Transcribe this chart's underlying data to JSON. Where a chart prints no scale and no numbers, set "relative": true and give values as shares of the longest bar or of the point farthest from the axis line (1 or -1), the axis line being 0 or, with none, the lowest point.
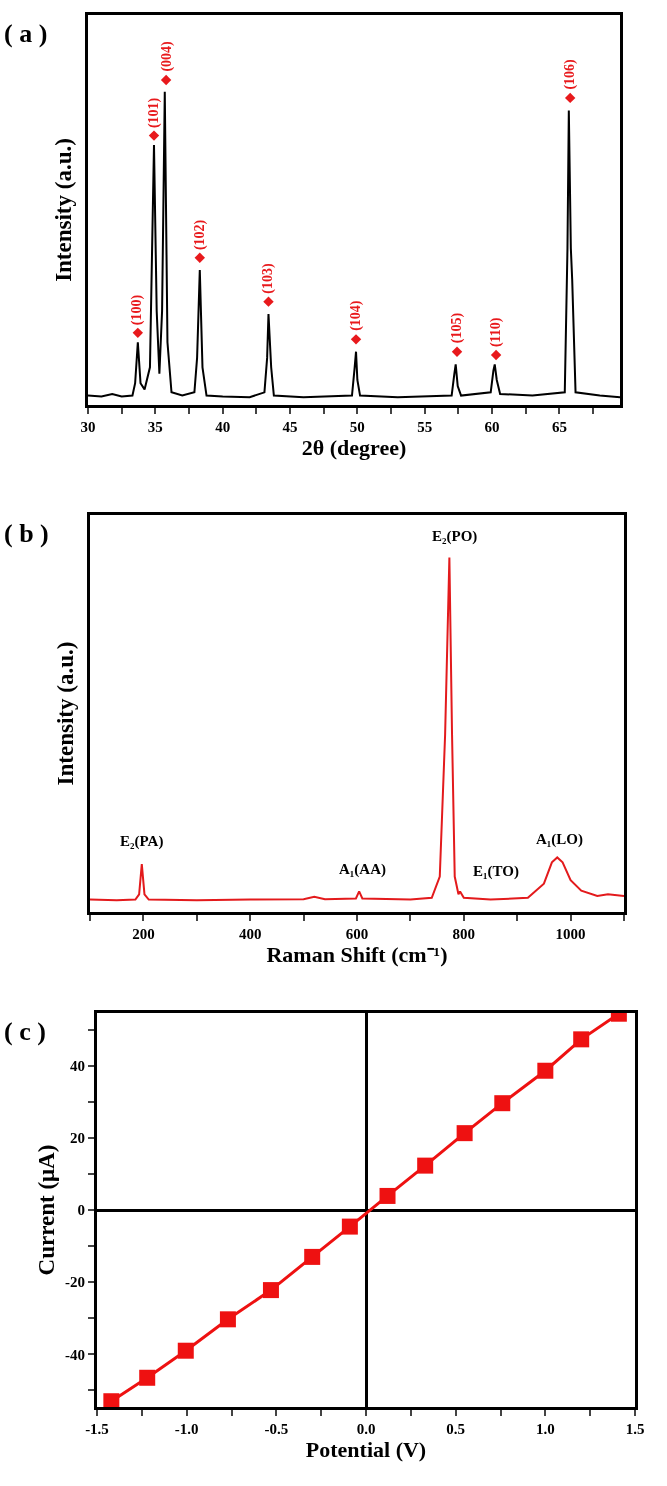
{
  "chart_data": [
    {
      "type": "line",
      "title": "( a )",
      "xlabel": "2θ (degree)",
      "ylabel": "Intensity (a.u.)",
      "relative": true,
      "tick_labels": "x",
      "xlim": [
        30,
        69.5
      ],
      "xticks": [
        30,
        {
          "value": 32.5,
          "label": null
        },
        35,
        {
          "value": 37.5,
          "label": null
        },
        40,
        {
          "value": 42.5,
          "label": null
        },
        45,
        {
          "value": 47.5,
          "label": null
        },
        50,
        {
          "value": 52.5,
          "label": null
        },
        55,
        {
          "value": 57.5,
          "label": null
        },
        60,
        {
          "value": 62.5,
          "label": null
        },
        65,
        {
          "value": 67.5,
          "label": null
        }
      ],
      "series": [
        {
          "type": "line",
          "color": "#000000",
          "x": [
            30,
            31,
            31.8,
            32.5,
            33.3,
            33.5,
            33.7,
            33.9,
            34.2,
            34.6,
            34.9,
            35.1,
            35.3,
            35.5,
            35.7,
            35.9,
            36.2,
            37,
            37.9,
            38.1,
            38.3,
            38.5,
            38.8,
            40,
            42,
            43.1,
            43.3,
            43.4,
            43.6,
            43.8,
            46,
            49.6,
            49.8,
            49.9,
            50.0,
            50.2,
            53,
            57.0,
            57.2,
            57.3,
            57.45,
            57.7,
            59.9,
            60.1,
            60.2,
            60.35,
            60.6,
            63,
            65.4,
            65.6,
            65.7,
            65.85,
            65.95,
            66.2,
            68,
            69.5
          ],
          "values": [
            0.029,
            0.026,
            0.034,
            0.026,
            0.029,
            0.067,
            0.193,
            0.067,
            0.048,
            0.116,
            0.8,
            0.289,
            0.096,
            0.289,
            0.964,
            0.193,
            0.039,
            0.029,
            0.039,
            0.145,
            0.415,
            0.116,
            0.029,
            0.026,
            0.024,
            0.039,
            0.145,
            0.28,
            0.116,
            0.029,
            0.024,
            0.029,
            0.116,
            0.164,
            0.077,
            0.029,
            0.024,
            0.029,
            0.096,
            0.125,
            0.058,
            0.029,
            0.039,
            0.106,
            0.125,
            0.077,
            0.034,
            0.029,
            0.039,
            0.482,
            0.906,
            0.482,
            0.386,
            0.039,
            0.029,
            0.024
          ]
        },
        {
          "type": "scatter",
          "marker": "diamond",
          "color": "#e8191c",
          "x": [
            33.7,
            34.9,
            35.8,
            38.3,
            43.4,
            49.9,
            57.4,
            60.3,
            65.8
          ],
          "values": [
            0.222,
            0.829,
            1.0,
            0.453,
            0.318,
            0.202,
            0.164,
            0.154,
            0.945
          ]
        }
      ],
      "annotations": [
        {
          "text": "(100)",
          "x": 33.7,
          "y": 0.222
        },
        {
          "text": "(101)",
          "x": 34.9,
          "y": 0.829
        },
        {
          "text": "(004)",
          "x": 35.8,
          "y": 1.0
        },
        {
          "text": "(102)",
          "x": 38.3,
          "y": 0.453
        },
        {
          "text": "(103)",
          "x": 43.4,
          "y": 0.318
        },
        {
          "text": "(104)",
          "x": 49.9,
          "y": 0.202
        },
        {
          "text": "(105)",
          "x": 57.4,
          "y": 0.164
        },
        {
          "text": "(110)",
          "x": 60.3,
          "y": 0.154
        },
        {
          "text": "(106)",
          "x": 65.8,
          "y": 0.945
        }
      ]
    },
    {
      "type": "line",
      "title": "( b )",
      "xlabel": "Raman Shift (cm⁻¹)",
      "ylabel": "Intensity (a.u.)",
      "relative": true,
      "tick_labels": "x",
      "xlim": [
        100,
        1100
      ],
      "xticks": [
        {
          "value": 100,
          "label": null
        },
        200,
        {
          "value": 300,
          "label": null
        },
        400,
        {
          "value": 500,
          "label": null
        },
        600,
        {
          "value": 700,
          "label": null
        },
        800,
        {
          "value": 900,
          "label": null
        },
        1000,
        {
          "value": 1100,
          "label": null
        }
      ],
      "series": [
        {
          "type": "line",
          "color": "#e31a1c",
          "x": [
            100,
            150,
            185,
            192,
            197,
            202,
            210,
            300,
            400,
            500,
            520,
            540,
            598,
            604,
            610,
            700,
            740,
            755,
            765,
            773,
            778,
            783,
            790,
            793,
            800,
            850,
            920,
            950,
            965,
            975,
            985,
            1000,
            1020,
            1050,
            1070,
            1100
          ],
          "values": [
            0.035,
            0.033,
            0.035,
            0.05,
            0.135,
            0.05,
            0.035,
            0.033,
            0.035,
            0.036,
            0.043,
            0.036,
            0.038,
            0.058,
            0.038,
            0.035,
            0.04,
            0.1,
            0.5,
            1.0,
            0.5,
            0.1,
            0.05,
            0.058,
            0.04,
            0.035,
            0.04,
            0.08,
            0.14,
            0.154,
            0.14,
            0.09,
            0.06,
            0.045,
            0.05,
            0.045
          ]
        }
      ],
      "annotations": [
        "E₂(PA)",
        "A₁(AA)",
        "E₂(PO)",
        "E₁(TO)",
        "A₁(LO)"
      ]
    },
    {
      "type": "line",
      "title": "( c )",
      "xlabel": "Potential (V)",
      "ylabel": "Current (μA)",
      "marker": "square",
      "xlim": [
        -1.5,
        1.5
      ],
      "ylim": [
        -54.6,
        54.6
      ],
      "xticks": [
        {
          "value": -1.5,
          "label": "-1.5"
        },
        {
          "value": -1.25,
          "label": null
        },
        {
          "value": -1,
          "label": "-1.0"
        },
        {
          "value": -0.75,
          "label": null
        },
        {
          "value": -0.5,
          "label": "-0.5"
        },
        {
          "value": -0.25,
          "label": null
        },
        {
          "value": 0,
          "label": "0.0"
        },
        {
          "value": 0.25,
          "label": null
        },
        0.5,
        {
          "value": 0.75,
          "label": null
        },
        {
          "value": 1,
          "label": "1.0"
        },
        {
          "value": 1.25,
          "label": null
        },
        1.5
      ],
      "yticks": [
        {
          "value": -50,
          "label": null
        },
        -40,
        {
          "value": -30,
          "label": null
        },
        -20,
        {
          "value": -10,
          "label": null
        },
        0,
        {
          "value": 10,
          "label": null
        },
        20,
        {
          "value": 30,
          "label": null
        },
        40,
        {
          "value": 50,
          "label": null
        }
      ],
      "series": [
        {
          "color": "#ee1111",
          "x": [
            -1.42,
            -1.22,
            -1.005,
            -0.77,
            -0.53,
            -0.3,
            -0.09,
            0.12,
            0.33,
            0.55,
            0.76,
            1.0,
            1.2,
            1.41
          ],
          "values": [
            -53.0,
            -46.5,
            -39.0,
            -30.3,
            -22.2,
            -13.0,
            -4.6,
            3.9,
            12.3,
            21.3,
            29.6,
            38.6,
            47.3,
            54.4
          ]
        }
      ]
    }
  ]
}
